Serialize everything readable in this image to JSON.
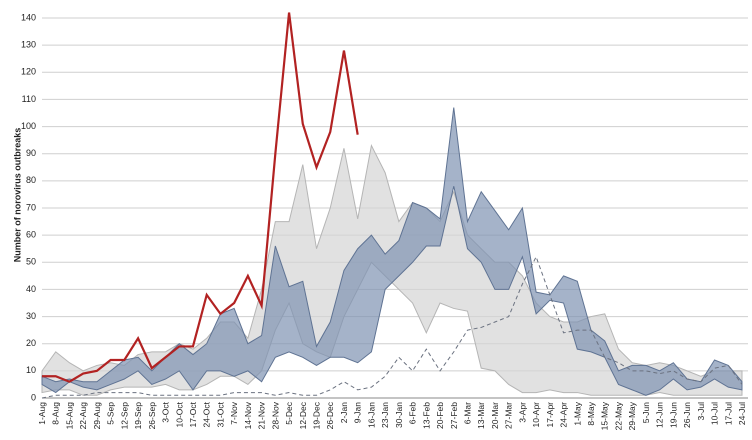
{
  "chart_data": {
    "type": "line",
    "ylabel": "Number of norovirus outbreaks",
    "categories": [
      "1-Aug",
      "8-Aug",
      "15-Aug",
      "22-Aug",
      "29-Aug",
      "5-Sep",
      "12-Sep",
      "19-Sep",
      "26-Sep",
      "3-Oct",
      "10-Oct",
      "17-Oct",
      "24-Oct",
      "31-Oct",
      "7-Nov",
      "14-Nov",
      "21-Nov",
      "28-Nov",
      "5-Dec",
      "12-Dec",
      "19-Dec",
      "26-Dec",
      "2-Jan",
      "9-Jan",
      "16-Jan",
      "23-Jan",
      "30-Jan",
      "6-Feb",
      "13-Feb",
      "20-Feb",
      "27-Feb",
      "6-Mar",
      "13-Mar",
      "20-Mar",
      "27-Mar",
      "3-Apr",
      "10-Apr",
      "17-Apr",
      "24-Apr",
      "1-May",
      "8-May",
      "15-May",
      "22-May",
      "29-May",
      "5-Jun",
      "12-Jun",
      "19-Jun",
      "26-Jun",
      "3-Jul",
      "10-Jul",
      "17-Jul",
      "24-Jul"
    ],
    "ylim": [
      0,
      140
    ],
    "yticks": [
      0,
      10,
      20,
      30,
      40,
      50,
      60,
      70,
      80,
      90,
      100,
      110,
      120,
      130,
      140
    ],
    "grid": true,
    "series": [
      {
        "type": "band",
        "color": "#d4d4d4",
        "edge": "#b5b5b5",
        "high": [
          10,
          17,
          13,
          10,
          12,
          13,
          12,
          16,
          17,
          17,
          20,
          18,
          22,
          28,
          28,
          22,
          40,
          65,
          65,
          86,
          55,
          70,
          92,
          66,
          93,
          83,
          65,
          72,
          70,
          65,
          76,
          60,
          55,
          50,
          50,
          45,
          35,
          30,
          28,
          28,
          30,
          31,
          18,
          13,
          12,
          13,
          12,
          10,
          8,
          10,
          10,
          10
        ],
        "low": [
          2,
          3,
          3,
          1,
          1,
          3,
          4,
          4,
          4,
          5,
          3,
          3,
          5,
          8,
          8,
          5,
          10,
          25,
          35,
          20,
          17,
          15,
          30,
          40,
          50,
          45,
          40,
          35,
          24,
          35,
          33,
          32,
          11,
          10,
          5,
          2,
          2,
          3,
          2,
          2,
          1,
          1,
          1,
          1,
          1,
          2,
          1,
          1,
          1,
          1,
          1,
          1
        ]
      },
      {
        "type": "band",
        "color": "#7f93b2",
        "edge": "#5f7393",
        "high": [
          8,
          6,
          7,
          6,
          6,
          10,
          14,
          15,
          10,
          15,
          20,
          16,
          20,
          31,
          33,
          20,
          23,
          56,
          41,
          43,
          19,
          28,
          47,
          55,
          60,
          53,
          58,
          72,
          70,
          66,
          107,
          65,
          76,
          69,
          62,
          70,
          39,
          38,
          45,
          43,
          25,
          21,
          10,
          12,
          12,
          10,
          13,
          7,
          6,
          14,
          12,
          6
        ],
        "low": [
          5,
          2,
          6,
          4,
          3,
          5,
          7,
          10,
          5,
          7,
          10,
          3,
          10,
          10,
          8,
          10,
          6,
          15,
          17,
          15,
          12,
          15,
          15,
          13,
          17,
          40,
          45,
          50,
          56,
          56,
          78,
          55,
          50,
          40,
          40,
          52,
          31,
          36,
          35,
          18,
          17,
          15,
          5,
          3,
          1,
          3,
          7,
          3,
          4,
          7,
          4,
          3
        ]
      },
      {
        "type": "line",
        "color": "#6b7280",
        "dashed": true,
        "values": [
          0,
          1,
          1,
          1,
          2,
          2,
          2,
          2,
          1,
          1,
          1,
          1,
          1,
          1,
          2,
          2,
          2,
          1,
          2,
          1,
          1,
          3,
          6,
          3,
          4,
          8,
          15,
          10,
          18,
          10,
          17,
          25,
          26,
          28,
          30,
          42,
          52,
          38,
          24,
          25,
          25,
          15,
          13,
          10,
          10,
          9,
          10,
          7,
          6,
          11,
          12,
          5
        ]
      },
      {
        "type": "line",
        "color": "#b22222",
        "dashed": false,
        "values": [
          8,
          8,
          6,
          9,
          10,
          14,
          14,
          22,
          11,
          15,
          19,
          19,
          38,
          31,
          35,
          45,
          34,
          90,
          142,
          101,
          85,
          98,
          128,
          97,
          null,
          null,
          null,
          null,
          null,
          null,
          null,
          null,
          null,
          null,
          null,
          null,
          null,
          null,
          null,
          null,
          null,
          null,
          null,
          null,
          null,
          null,
          null,
          null,
          null,
          null,
          null,
          null
        ]
      }
    ]
  }
}
